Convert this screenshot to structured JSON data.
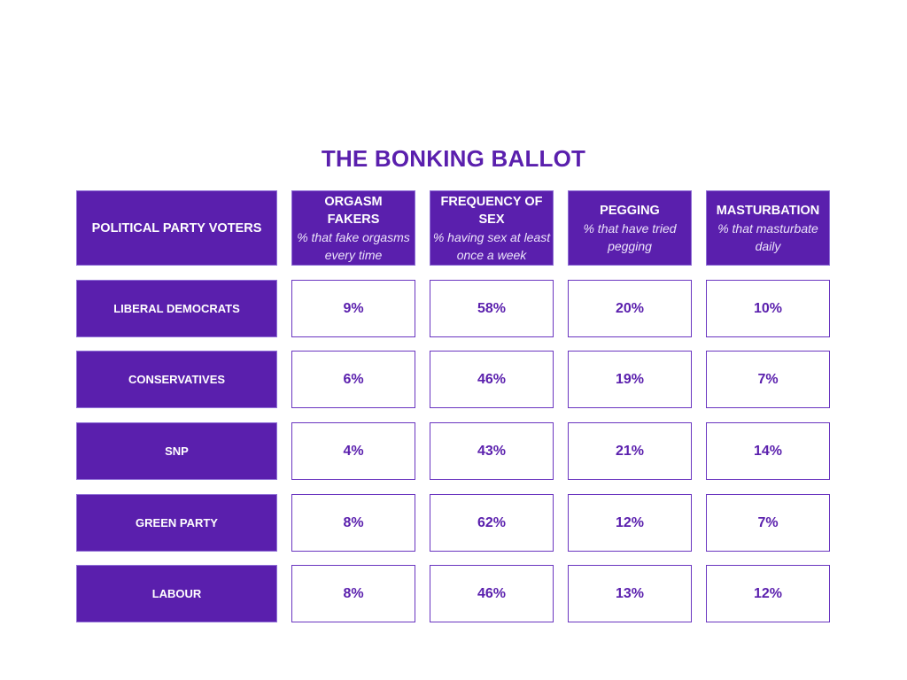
{
  "chart_data": {
    "type": "table",
    "title": "THE BONKING BALLOT",
    "corner_header": "POLITICAL PARTY VOTERS",
    "columns": [
      {
        "title": "ORGASM FAKERS",
        "subtitle": "% that fake orgasms every time"
      },
      {
        "title": "FREQUENCY OF SEX",
        "subtitle": "% having sex at least once a week"
      },
      {
        "title": "PEGGING",
        "subtitle": "% that have tried pegging"
      },
      {
        "title": "MASTURBATION",
        "subtitle": "% that masturbate daily"
      }
    ],
    "rows": [
      {
        "label": "LIBERAL DEMOCRATS",
        "values": [
          "9%",
          "58%",
          "20%",
          "10%"
        ]
      },
      {
        "label": "CONSERVATIVES",
        "values": [
          "6%",
          "46%",
          "19%",
          "7%"
        ]
      },
      {
        "label": "SNP",
        "values": [
          "4%",
          "43%",
          "21%",
          "14%"
        ]
      },
      {
        "label": "GREEN PARTY",
        "values": [
          "8%",
          "62%",
          "12%",
          "7%"
        ]
      },
      {
        "label": "LABOUR",
        "values": [
          "8%",
          "46%",
          "13%",
          "12%"
        ]
      }
    ],
    "colors": {
      "header_fill": "#5a1fad",
      "header_text": "#ffffff",
      "value_text": "#5a1fad",
      "value_border": "#6a35c0"
    }
  }
}
